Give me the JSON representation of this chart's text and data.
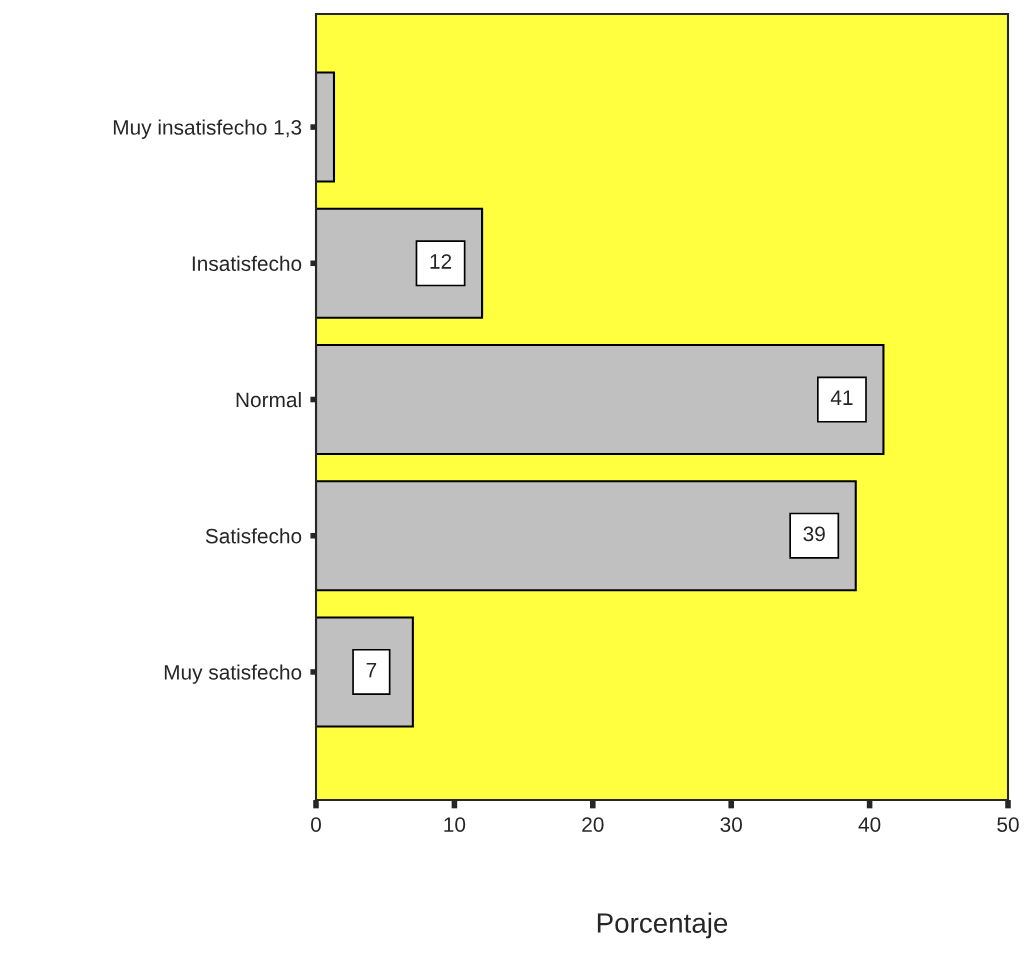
{
  "chart_data": {
    "type": "bar",
    "orientation": "horizontal",
    "categories": [
      "Muy insatisfecho 1,3",
      "Insatisfecho",
      "Normal",
      "Satisfecho",
      "Muy satisfecho"
    ],
    "values": [
      1.3,
      12,
      41,
      39,
      7
    ],
    "value_labels": [
      null,
      "12",
      "41",
      "39",
      "7"
    ],
    "color": "#c0c0c0",
    "xlabel": "Porcentaje",
    "xlim": [
      0,
      50
    ],
    "xticks": [
      0,
      10,
      20,
      30,
      40,
      50
    ],
    "grid": false
  }
}
